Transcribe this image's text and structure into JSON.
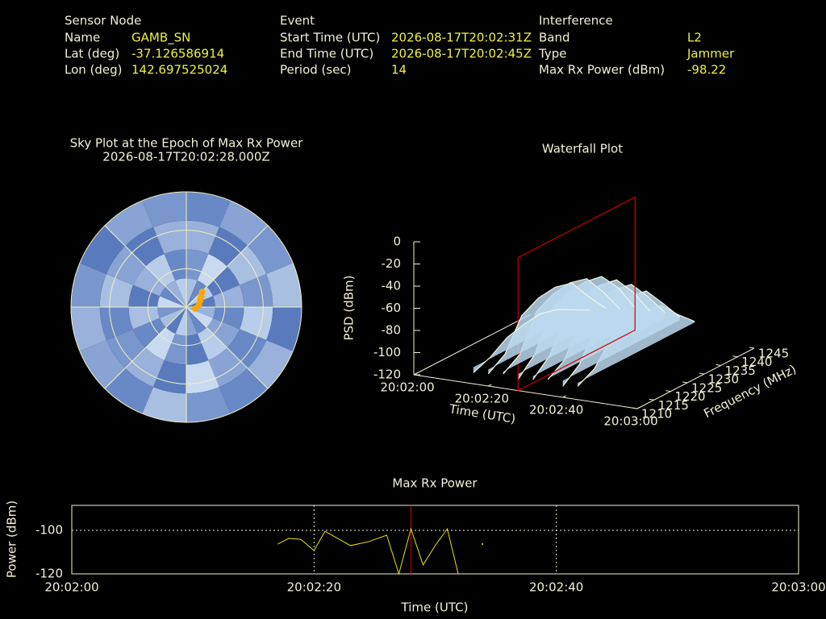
{
  "info": [
    {
      "title": "Sensor Node",
      "rows": [
        [
          "Name",
          "GAMB_SN"
        ],
        [
          "Lat (deg)",
          "-37.126586914"
        ],
        [
          "Lon (deg)",
          "142.697525024"
        ]
      ]
    },
    {
      "title": "Event",
      "rows": [
        [
          "Start Time (UTC)",
          "2026-08-17T20:02:31Z"
        ],
        [
          "End Time (UTC)",
          "2026-08-17T20:02:45Z"
        ],
        [
          "Period (sec)",
          "14"
        ]
      ]
    },
    {
      "title": "Interference",
      "rows": [
        [
          "Band",
          "L2"
        ],
        [
          "Type",
          "Jammer"
        ],
        [
          "Max Rx Power (dBm)",
          "-98.22"
        ]
      ]
    }
  ],
  "chart_data": [
    {
      "type": "polar-heatmap",
      "title": "Sky Plot at the Epoch of Max Rx Power",
      "subtitle": "2026-08-17T20:02:28.000Z",
      "colors": [
        "#3a5fb0",
        "#d8e8f8"
      ],
      "values": [
        [
          0.7,
          0.3,
          0.8,
          0.2,
          0.6,
          0.9,
          0.3,
          0.5,
          0.8,
          0.2,
          0.7,
          0.4,
          0.9,
          0.3,
          0.6,
          0.8
        ],
        [
          0.4,
          0.9,
          0.2,
          0.6,
          0.3,
          0.5,
          0.8,
          0.2,
          0.4,
          0.9,
          0.3,
          0.7,
          0.2,
          0.6,
          0.8,
          0.3
        ],
        [
          0.6,
          0.2,
          0.7,
          0.4,
          0.8,
          0.3,
          0.5,
          0.9,
          0.2,
          0.6,
          0.4,
          0.3,
          0.7,
          0.5,
          0.2,
          0.6
        ],
        [
          0.3,
          0.5,
          0.4,
          0.7,
          0.2,
          0.6,
          0.3,
          0.4,
          0.7,
          0.3,
          0.5,
          0.6,
          0.4,
          0.2,
          0.5,
          0.4
        ]
      ],
      "track": {
        "color": "#ffa500",
        "az": [
          100,
          80,
          65,
          55,
          46
        ],
        "el": [
          83,
          80,
          78,
          76,
          73
        ]
      }
    },
    {
      "type": "waterfall3d",
      "title": "Waterfall Plot",
      "xlabel": "Time (UTC)",
      "ylabel": "Frequency (MHz)",
      "zlabel": "PSD (dBm)",
      "xlim": [
        0,
        60
      ],
      "xticks": [
        {
          "value": 0,
          "label": "20:02:00"
        },
        {
          "value": 20,
          "label": "20:02:20"
        },
        {
          "value": 40,
          "label": "20:02:40"
        },
        {
          "value": 60,
          "label": "20:03:00"
        }
      ],
      "ylim": [
        1210,
        1245
      ],
      "yticks": [
        1210,
        1215,
        1220,
        1225,
        1230,
        1235,
        1240,
        1245
      ],
      "zlim": [
        -120,
        0
      ],
      "zticks": [
        0,
        -20,
        -40,
        -60,
        -80,
        -100,
        -120
      ],
      "frequencies": [
        1210,
        1215,
        1220,
        1225,
        1230,
        1235,
        1240,
        1245
      ],
      "spectra": [
        {
          "time": 44,
          "values": [
            -108,
            -100,
            -80,
            -72,
            -70,
            -74,
            -90,
            -104
          ]
        },
        {
          "time": 40,
          "values": [
            -110,
            -98,
            -70,
            -62,
            -60,
            -63,
            -82,
            -102
          ]
        },
        {
          "time": 36,
          "values": [
            -106,
            -96,
            -66,
            -58,
            -56,
            -59,
            -78,
            -100
          ]
        },
        {
          "time": 32,
          "values": [
            -108,
            -94,
            -64,
            -56,
            -54,
            -57,
            -76,
            -101
          ]
        },
        {
          "time": 28,
          "values": [
            -110,
            -95,
            -62,
            -55,
            -53,
            -56,
            -74,
            -100
          ]
        },
        {
          "time": 24,
          "values": [
            -107,
            -97,
            -66,
            -58,
            -56,
            -60,
            -80,
            -103
          ]
        },
        {
          "time": 20,
          "values": [
            -109,
            -99,
            -72,
            -64,
            -62,
            -66,
            -86,
            -104
          ]
        },
        {
          "time": 16,
          "values": [
            -110,
            -104,
            -94,
            -90,
            -88,
            -92,
            -100,
            -108
          ]
        }
      ],
      "surface_color": "#bcd8ee",
      "marker_time": 28,
      "marker_color": "#cc0000"
    },
    {
      "type": "line",
      "title": "Max Rx Power",
      "xlabel": "Time (UTC)",
      "ylabel": "Power (dBm)",
      "x": [
        17.0,
        17.9,
        18.9,
        20.0,
        20.9,
        23.0,
        24.5,
        26.0,
        27.0,
        28.0,
        29.0,
        30.0,
        31.0,
        31.9,
        32.9,
        33.9
      ],
      "values": [
        -106.3,
        -103.7,
        -104.1,
        -109.3,
        -100.4,
        -107,
        -105.2,
        -102.2,
        -120,
        -99.3,
        -115.9,
        -107,
        -99.3,
        -120,
        null,
        -106.3
      ],
      "color": "#e6e600",
      "xlim": [
        0,
        60
      ],
      "xticks": [
        {
          "value": 0,
          "label": "20:02:00"
        },
        {
          "value": 20,
          "label": "20:02:20"
        },
        {
          "value": 40,
          "label": "20:02:40"
        },
        {
          "value": 60,
          "label": "20:03:00"
        }
      ],
      "ylim": [
        -120,
        -88.5
      ],
      "yticks": [
        -120,
        -100
      ],
      "grid": true,
      "marker_time": 28,
      "marker_color": "#cc0000"
    }
  ]
}
